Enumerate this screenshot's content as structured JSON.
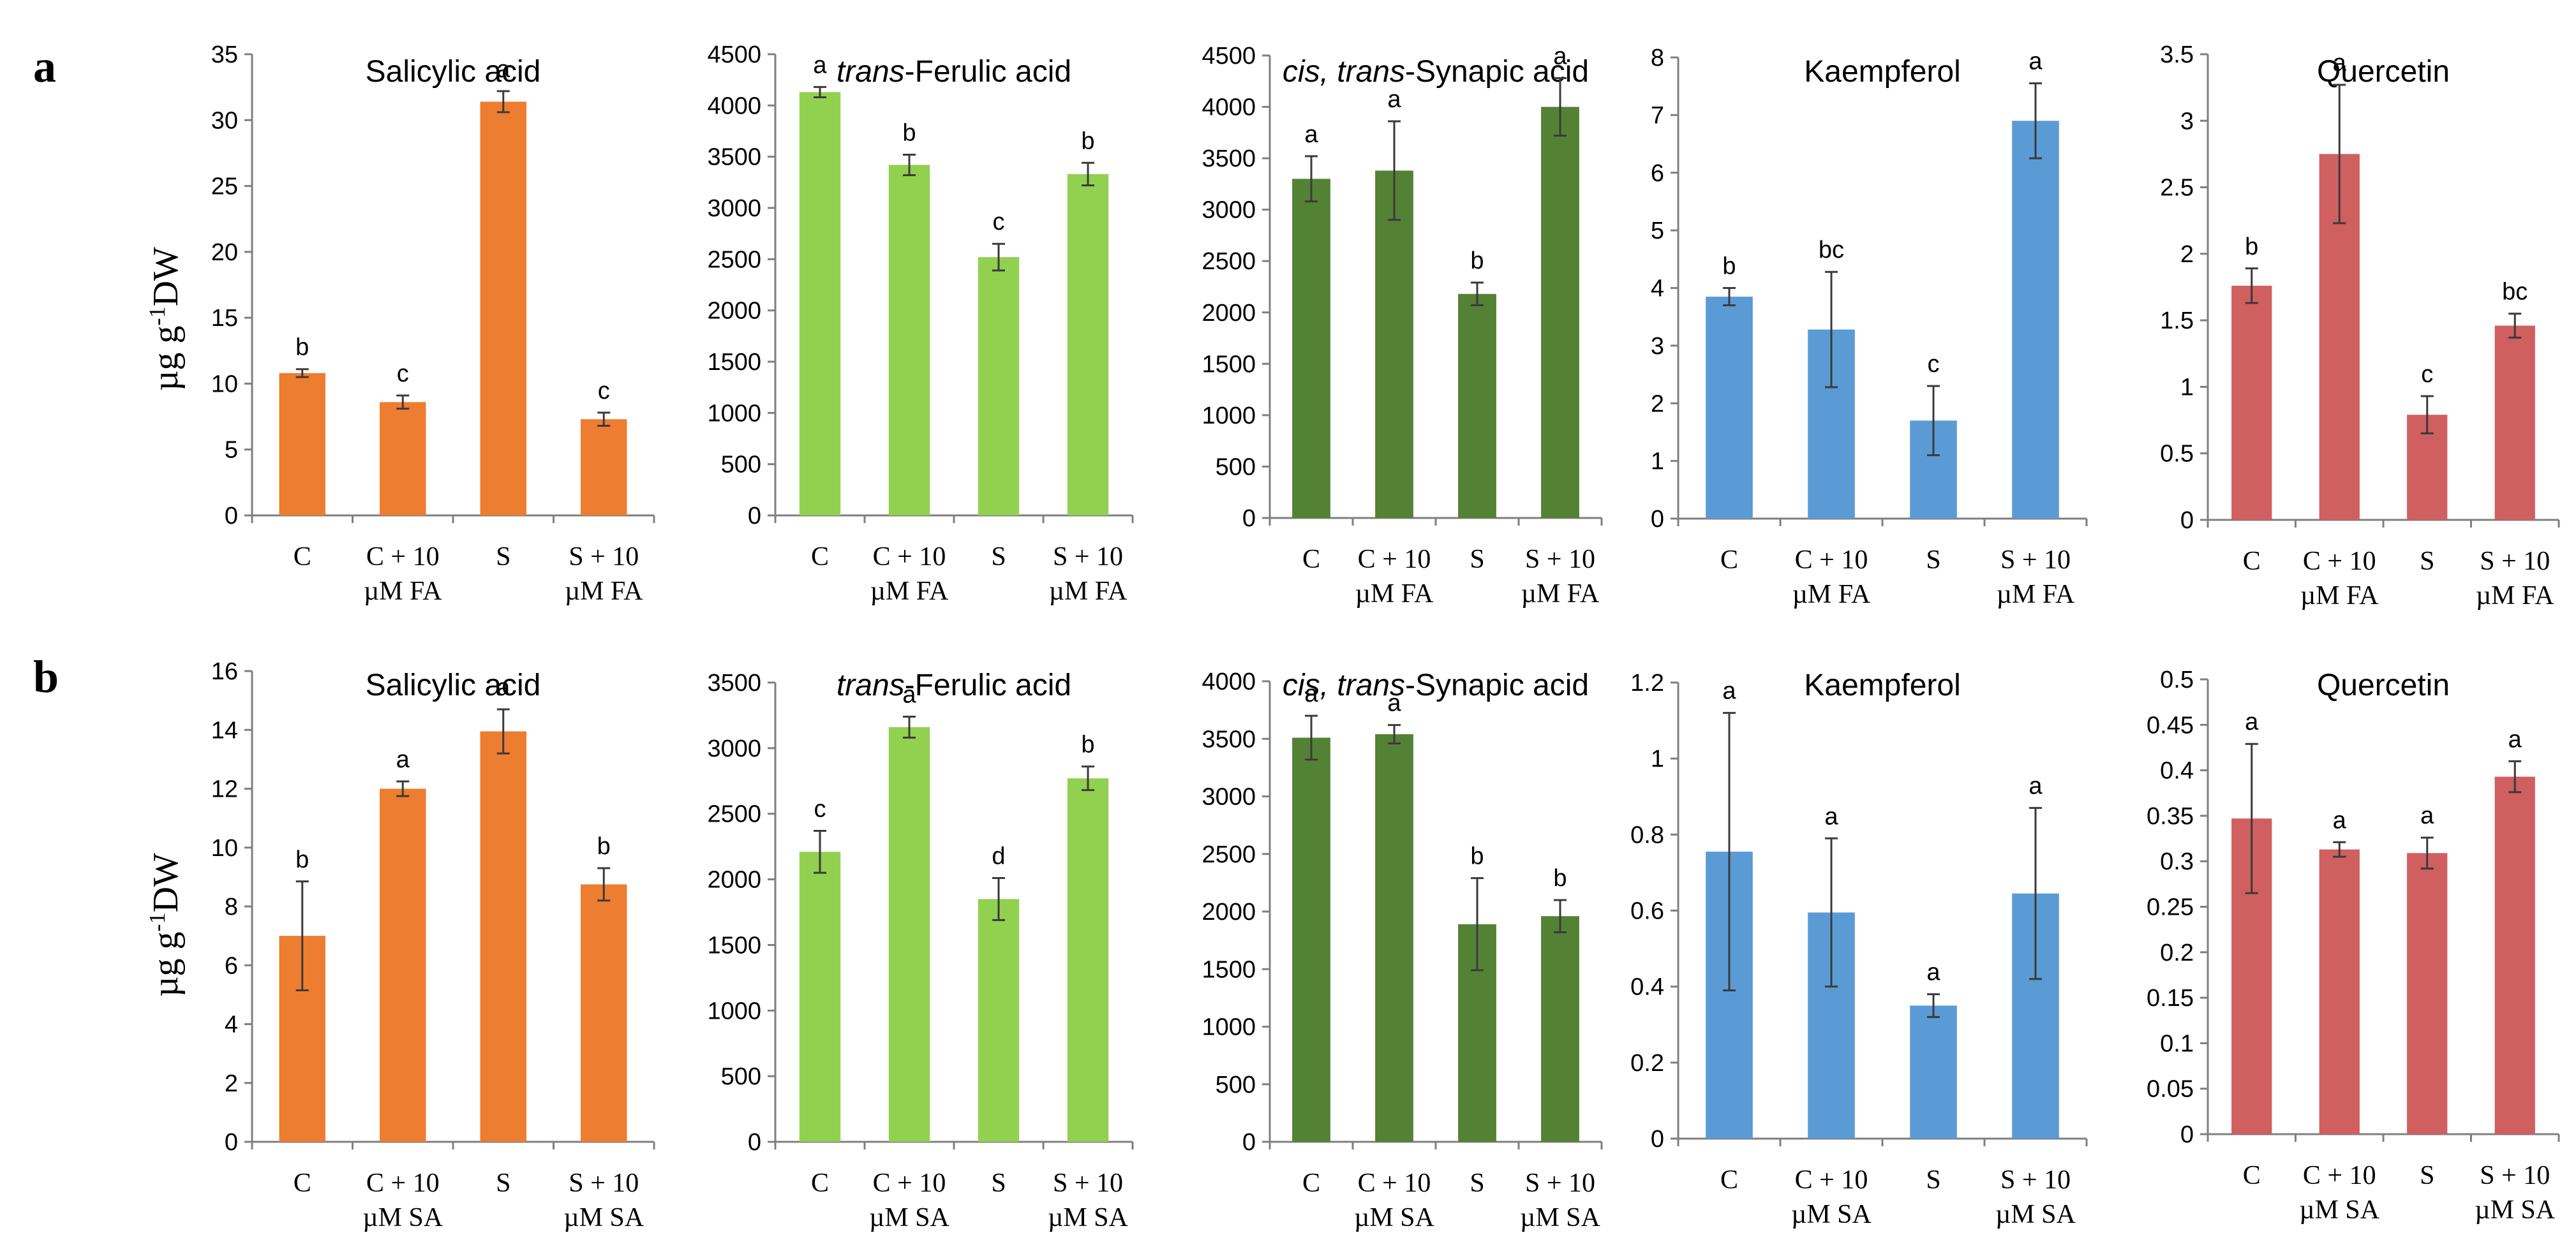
{
  "figure": {
    "panel_labels": [
      "a",
      "b"
    ],
    "ylabel_main": "µg g",
    "ylabel_sup": "-1",
    "ylabel_tail": "DW"
  },
  "colors": {
    "Salicylic acid": "#ED7D31",
    "trans-Ferulic acid": "#92D050",
    "cis, trans-Synapic acid": "#548235",
    "Kaempferol": "#5B9BD5",
    "Quercetin": "#D05F5F"
  },
  "chart_data": [
    {
      "row": "a",
      "col": 0,
      "type": "bar",
      "title": "Salicylic acid",
      "title_italic": "",
      "title_rest": "Salicylic acid",
      "color_key": "Salicylic acid",
      "categories": [
        [
          "C",
          ""
        ],
        [
          "C + 10",
          "µM FA"
        ],
        [
          "S",
          ""
        ],
        [
          "S + 10",
          "µM FA"
        ]
      ],
      "values": [
        10.8,
        8.6,
        31.4,
        7.3
      ],
      "errors": [
        0.3,
        0.5,
        0.8,
        0.5
      ],
      "letters": [
        "b",
        "c",
        "a",
        "c"
      ],
      "ylim": [
        0,
        35
      ],
      "yticks": [
        "0",
        "5",
        "10",
        "15",
        "20",
        "25",
        "30",
        "35"
      ]
    },
    {
      "row": "a",
      "col": 1,
      "type": "bar",
      "title": "trans-Ferulic acid",
      "title_italic": "trans",
      "title_rest": "-Ferulic acid",
      "color_key": "trans-Ferulic acid",
      "categories": [
        [
          "C",
          ""
        ],
        [
          "C + 10",
          "µM FA"
        ],
        [
          "S",
          ""
        ],
        [
          "S + 10",
          "µM FA"
        ]
      ],
      "values": [
        4130,
        3420,
        2520,
        3330
      ],
      "errors": [
        50,
        100,
        130,
        110
      ],
      "letters": [
        "a",
        "b",
        "c",
        "b"
      ],
      "ylim": [
        0,
        4500
      ],
      "yticks": [
        "0",
        "500",
        "1000",
        "1500",
        "2000",
        "2500",
        "3000",
        "3500",
        "4000",
        "4500"
      ]
    },
    {
      "row": "a",
      "col": 2,
      "type": "bar",
      "title": "cis, trans-Synapic acid",
      "title_italic": "cis, trans",
      "title_rest": "-Synapic acid",
      "color_key": "cis, trans-Synapic acid",
      "categories": [
        [
          "C",
          ""
        ],
        [
          "C + 10",
          "µM FA"
        ],
        [
          "S",
          ""
        ],
        [
          "S + 10",
          "µM FA"
        ]
      ],
      "values": [
        3300,
        3380,
        2180,
        4000
      ],
      "errors": [
        220,
        480,
        110,
        280
      ],
      "letters": [
        "a",
        "a",
        "b",
        "a"
      ],
      "ylim": [
        0,
        4500
      ],
      "yticks": [
        "0",
        "500",
        "1000",
        "1500",
        "2000",
        "2500",
        "3000",
        "3500",
        "4000",
        "4500"
      ]
    },
    {
      "row": "a",
      "col": 3,
      "type": "bar",
      "title": "Kaempferol",
      "title_italic": "",
      "title_rest": "Kaempferol",
      "color_key": "Kaempferol",
      "categories": [
        [
          "C",
          ""
        ],
        [
          "C + 10",
          "µM FA"
        ],
        [
          "S",
          ""
        ],
        [
          "S + 10",
          "µM FA"
        ]
      ],
      "values": [
        3.85,
        3.28,
        1.7,
        6.9
      ],
      "errors": [
        0.15,
        1.0,
        0.6,
        0.65
      ],
      "letters": [
        "b",
        "bc",
        "c",
        "a"
      ],
      "ylim": [
        0,
        8
      ],
      "yticks": [
        "0",
        "1",
        "2",
        "3",
        "4",
        "5",
        "6",
        "7",
        "8"
      ]
    },
    {
      "row": "a",
      "col": 4,
      "type": "bar",
      "title": "Quercetin",
      "title_italic": "",
      "title_rest": "Quercetin",
      "color_key": "Quercetin",
      "categories": [
        [
          "C",
          ""
        ],
        [
          "C + 10",
          "µM FA"
        ],
        [
          "S",
          ""
        ],
        [
          "S + 10",
          "µM FA"
        ]
      ],
      "values": [
        1.76,
        2.75,
        0.79,
        1.46
      ],
      "errors": [
        0.13,
        0.52,
        0.14,
        0.09
      ],
      "letters": [
        "b",
        "a",
        "c",
        "bc"
      ],
      "ylim": [
        0,
        3.5
      ],
      "yticks": [
        "0",
        "0.5",
        "1",
        "1.5",
        "2",
        "2.5",
        "3",
        "3.5"
      ]
    },
    {
      "row": "b",
      "col": 0,
      "type": "bar",
      "title": "Salicylic acid",
      "title_italic": "",
      "title_rest": "Salicylic acid",
      "color_key": "Salicylic acid",
      "categories": [
        [
          "C",
          ""
        ],
        [
          "C + 10",
          "µM SA"
        ],
        [
          "S",
          ""
        ],
        [
          "S + 10",
          "µM SA"
        ]
      ],
      "values": [
        7.0,
        12.0,
        13.95,
        8.75
      ],
      "errors": [
        1.85,
        0.25,
        0.75,
        0.55
      ],
      "letters": [
        "b",
        "a",
        "a",
        "b"
      ],
      "ylim": [
        0,
        16
      ],
      "yticks": [
        "0",
        "2",
        "4",
        "6",
        "8",
        "10",
        "12",
        "14",
        "16"
      ]
    },
    {
      "row": "b",
      "col": 1,
      "type": "bar",
      "title": "trans-Ferulic acid",
      "title_italic": "trans",
      "title_rest": "-Ferulic acid",
      "color_key": "trans-Ferulic acid",
      "categories": [
        [
          "C",
          ""
        ],
        [
          "C + 10",
          "µM SA"
        ],
        [
          "S",
          ""
        ],
        [
          "S + 10",
          "µM SA"
        ]
      ],
      "values": [
        2210,
        3160,
        1850,
        2770
      ],
      "errors": [
        160,
        80,
        160,
        90
      ],
      "letters": [
        "c",
        "a",
        "d",
        "b"
      ],
      "ylim": [
        0,
        3500
      ],
      "yticks": [
        "0",
        "500",
        "1000",
        "1500",
        "2000",
        "2500",
        "3000",
        "3500"
      ]
    },
    {
      "row": "b",
      "col": 2,
      "type": "bar",
      "title": "cis, trans-Synapic acid",
      "title_italic": "cis, trans",
      "title_rest": "-Synapic acid",
      "color_key": "cis, trans-Synapic acid",
      "categories": [
        [
          "C",
          ""
        ],
        [
          "C + 10",
          "µM SA"
        ],
        [
          "S",
          ""
        ],
        [
          "S + 10",
          "µM SA"
        ]
      ],
      "values": [
        3510,
        3540,
        1890,
        1960
      ],
      "errors": [
        190,
        80,
        400,
        140
      ],
      "letters": [
        "a",
        "a",
        "b",
        "b"
      ],
      "ylim": [
        0,
        4000
      ],
      "yticks": [
        "0",
        "500",
        "1000",
        "1500",
        "2000",
        "2500",
        "3000",
        "3500",
        "4000"
      ]
    },
    {
      "row": "b",
      "col": 3,
      "type": "bar",
      "title": "Kaempferol",
      "title_italic": "",
      "title_rest": "Kaempferol",
      "color_key": "Kaempferol",
      "categories": [
        [
          "C",
          ""
        ],
        [
          "C + 10",
          "µM SA"
        ],
        [
          "S",
          ""
        ],
        [
          "S + 10",
          "µM SA"
        ]
      ],
      "values": [
        0.755,
        0.595,
        0.35,
        0.645
      ],
      "errors": [
        0.365,
        0.195,
        0.03,
        0.225
      ],
      "letters": [
        "a",
        "a",
        "a",
        "a"
      ],
      "ylim": [
        0,
        1.2
      ],
      "yticks": [
        "0",
        "0.2",
        "0.4",
        "0.6",
        "0.8",
        "1",
        "1.2"
      ]
    },
    {
      "row": "b",
      "col": 4,
      "type": "bar",
      "title": "Quercetin",
      "title_italic": "",
      "title_rest": "Quercetin",
      "color_key": "Quercetin",
      "categories": [
        [
          "C",
          ""
        ],
        [
          "C + 10",
          "µM SA"
        ],
        [
          "S",
          ""
        ],
        [
          "S + 10",
          "µM SA"
        ]
      ],
      "values": [
        0.347,
        0.313,
        0.309,
        0.393
      ],
      "errors": [
        0.082,
        0.008,
        0.017,
        0.017
      ],
      "letters": [
        "a",
        "a",
        "a",
        "a"
      ],
      "ylim": [
        0,
        0.5
      ],
      "yticks": [
        "0",
        "0.05",
        "0.1",
        "0.15",
        "0.2",
        "0.25",
        "0.3",
        "0.35",
        "0.4",
        "0.45",
        "0.5"
      ]
    }
  ]
}
